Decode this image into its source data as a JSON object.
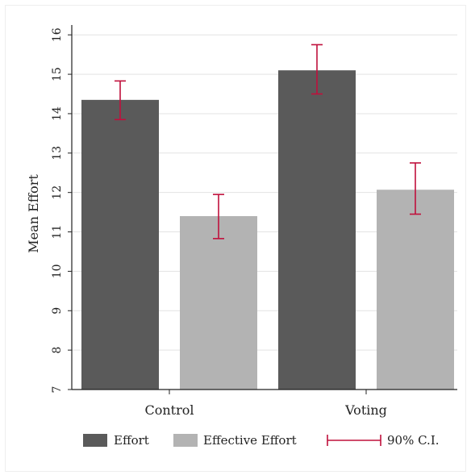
{
  "chart_data": {
    "type": "bar",
    "categories": [
      "Control",
      "Voting"
    ],
    "series": [
      {
        "name": "Effort",
        "values": [
          14.35,
          15.1
        ],
        "ci_low": [
          13.85,
          14.5
        ],
        "ci_high": [
          14.83,
          15.75
        ],
        "color": "#5a5a5a"
      },
      {
        "name": "Effective Effort",
        "values": [
          11.4,
          12.07
        ],
        "ci_low": [
          10.83,
          11.45
        ],
        "ci_high": [
          11.95,
          12.75
        ],
        "color": "#b3b3b3"
      }
    ],
    "ci_label": "90% C.I.",
    "ci_color": "#c0103c",
    "ylabel": "Mean Effort",
    "xlabel": "",
    "ylim": [
      7,
      16.25
    ],
    "yticks": [
      "7",
      "8",
      "9",
      "10",
      "11",
      "12",
      "13",
      "14",
      "15",
      "16"
    ],
    "grid": true,
    "legend_position": "bottom"
  }
}
